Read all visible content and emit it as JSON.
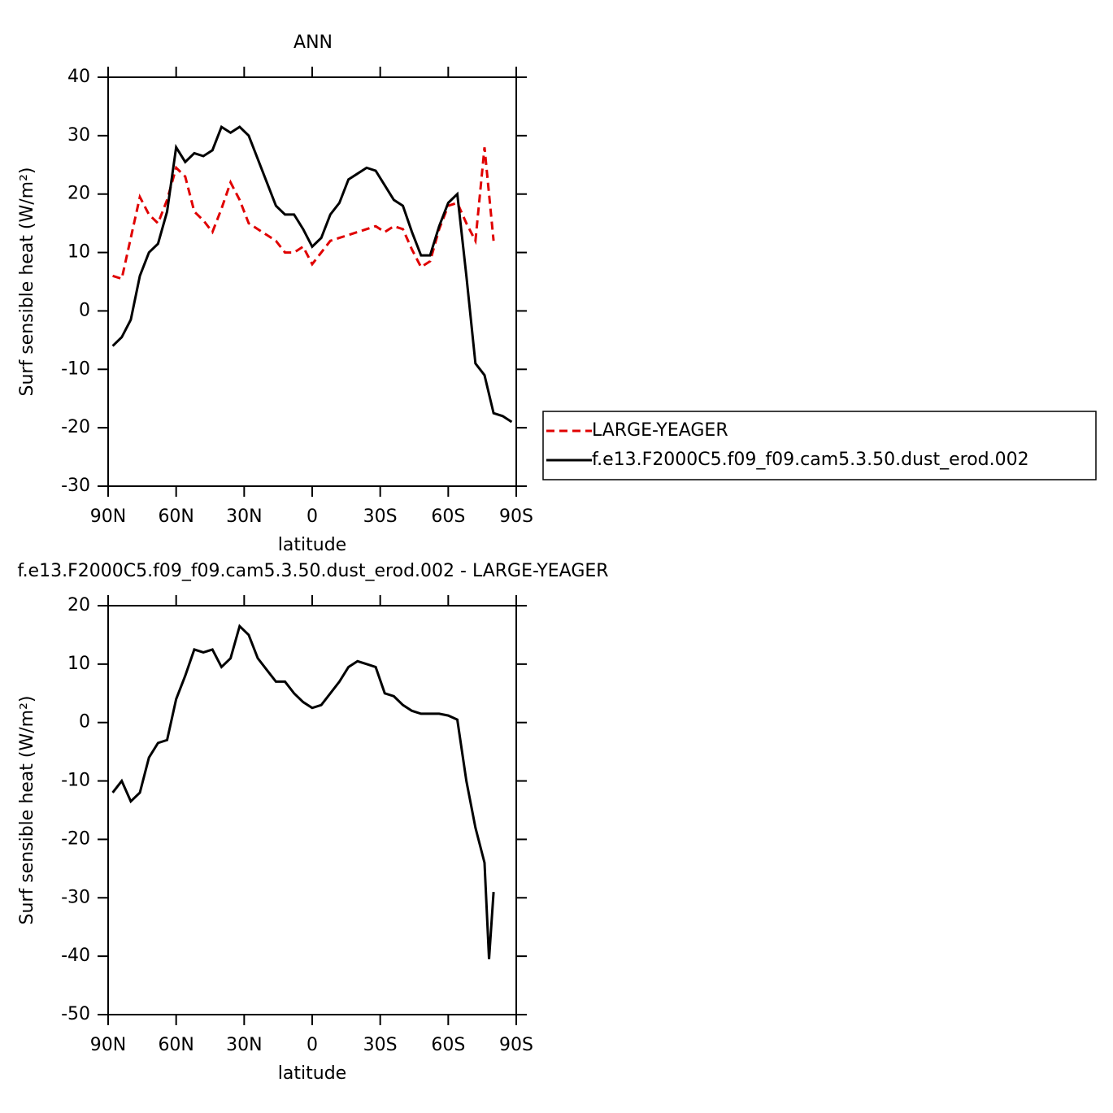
{
  "chart_data": [
    {
      "type": "line",
      "title": "ANN",
      "xlabel": "latitude",
      "ylabel": "Surf sensible heat (W/m²)",
      "x": [
        88,
        84,
        80,
        76,
        72,
        68,
        64,
        60,
        56,
        52,
        48,
        44,
        40,
        36,
        32,
        28,
        24,
        20,
        16,
        12,
        8,
        4,
        0,
        -4,
        -8,
        -12,
        -16,
        -20,
        -24,
        -28,
        -32,
        -36,
        -40,
        -44,
        -48,
        -52,
        -56,
        -60,
        -64,
        -68,
        -72,
        -76,
        -80,
        -84,
        -88
      ],
      "xlim": [
        90,
        -90
      ],
      "xticks": [
        {
          "value": 90,
          "label": "90N"
        },
        {
          "value": 60,
          "label": "60N"
        },
        {
          "value": 30,
          "label": "30N"
        },
        0,
        {
          "value": -30,
          "label": "30S"
        },
        {
          "value": -60,
          "label": "60S"
        },
        {
          "value": -90,
          "label": "90S"
        }
      ],
      "ylim": [
        -30,
        40
      ],
      "yticks": [
        -30,
        -20,
        -10,
        0,
        10,
        20,
        30,
        40
      ],
      "legend": "right",
      "series": [
        {
          "name": "LARGE-YEAGER",
          "color": "#e00000",
          "linestyle": "dashed",
          "values": [
            6,
            5.5,
            12.5,
            19.5,
            16.5,
            15,
            19,
            24.5,
            23,
            17,
            15.5,
            13.5,
            17.5,
            22,
            19,
            15,
            14,
            13,
            12,
            10,
            10,
            11,
            8,
            10,
            12,
            12.5,
            13,
            13.5,
            14,
            14.5,
            13.5,
            14.5,
            14,
            10.5,
            7.5,
            8.5,
            14,
            18,
            18.5,
            15,
            12,
            28,
            12,
            null,
            null
          ]
        },
        {
          "name": "f.e13.F2000C5.f09_f09.cam5.3.50.dust_erod.002",
          "color": "#000000",
          "linestyle": "solid",
          "values": [
            -6,
            -4.5,
            -1.5,
            6,
            10,
            11.5,
            17,
            28,
            25.5,
            27,
            26.5,
            27.5,
            31.5,
            30.5,
            31.5,
            30,
            26,
            22,
            18,
            16.5,
            16.5,
            14,
            11,
            12.5,
            16.5,
            18.5,
            22.5,
            23.5,
            24.5,
            24,
            21.5,
            19,
            18,
            13.5,
            9.5,
            9.5,
            14.5,
            18.5,
            20,
            6,
            -9,
            -11,
            -17.5,
            -18,
            -19
          ]
        }
      ]
    },
    {
      "type": "line",
      "title": "f.e13.F2000C5.f09_f09.cam5.3.50.dust_erod.002 - LARGE-YEAGER",
      "xlabel": "latitude",
      "ylabel": "Surf sensible heat (W/m²)",
      "x": [
        88,
        84,
        80,
        76,
        72,
        68,
        64,
        60,
        56,
        52,
        48,
        44,
        40,
        36,
        32,
        28,
        24,
        20,
        16,
        12,
        8,
        4,
        0,
        -4,
        -8,
        -12,
        -16,
        -20,
        -24,
        -28,
        -32,
        -36,
        -40,
        -44,
        -48,
        -52,
        -56,
        -60,
        -64,
        -68,
        -72,
        -76,
        -78,
        -80
      ],
      "xlim": [
        90,
        -90
      ],
      "xticks": [
        {
          "value": 90,
          "label": "90N"
        },
        {
          "value": 60,
          "label": "60N"
        },
        {
          "value": 30,
          "label": "30N"
        },
        0,
        {
          "value": -30,
          "label": "30S"
        },
        {
          "value": -60,
          "label": "60S"
        },
        {
          "value": -90,
          "label": "90S"
        }
      ],
      "ylim": [
        -50,
        20
      ],
      "yticks": [
        -50,
        -40,
        -30,
        -20,
        -10,
        0,
        10,
        20
      ],
      "series": [
        {
          "color": "#000000",
          "linestyle": "solid",
          "values": [
            -12,
            -10,
            -13.5,
            -12,
            -6,
            -3.5,
            -3,
            4,
            8,
            12.5,
            12,
            12.5,
            9.5,
            11,
            16.5,
            15,
            11,
            9,
            7,
            7,
            5,
            3.5,
            2.5,
            3,
            5,
            7,
            9.5,
            10.5,
            10,
            9.5,
            5,
            4.5,
            3,
            2,
            1.5,
            1.5,
            1.5,
            1.2,
            0.5,
            -10,
            -18,
            -24,
            -40.5,
            -29
          ]
        }
      ]
    }
  ]
}
